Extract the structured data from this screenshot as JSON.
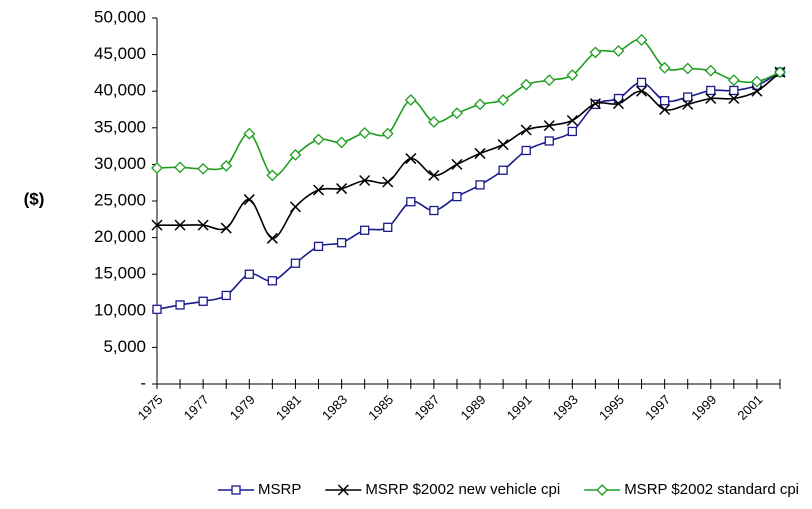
{
  "chart_data": {
    "type": "line",
    "y_label": "($)",
    "categories": [
      "1975",
      null,
      "1977",
      null,
      "1979",
      null,
      "1981",
      null,
      "1983",
      null,
      "1985",
      null,
      "1987",
      null,
      "1989",
      null,
      "1991",
      null,
      "1993",
      null,
      "1995",
      null,
      "1997",
      null,
      "1999",
      null,
      "2001",
      null
    ],
    "series": [
      {
        "name": "MSRP",
        "color": "#1a1a8c",
        "marker": "square",
        "values": [
          10200,
          10800,
          11300,
          12100,
          15000,
          14100,
          16500,
          18800,
          19300,
          21000,
          21400,
          24900,
          23700,
          25600,
          27200,
          29200,
          31900,
          33200,
          34500,
          38200,
          39000,
          41200,
          38700,
          39200,
          40100,
          40100,
          40800,
          42600
        ]
      },
      {
        "name": "MSRP $2002 new vehicle cpi",
        "color": "#000000",
        "marker": "x",
        "values": [
          21700,
          21700,
          21700,
          21300,
          25200,
          19900,
          24200,
          26500,
          26700,
          27800,
          27600,
          30800,
          28500,
          30000,
          31500,
          32700,
          34700,
          35300,
          36000,
          38300,
          38300,
          40000,
          37500,
          38200,
          39000,
          39000,
          40000,
          42600
        ]
      },
      {
        "name": "MSRP $2002 standard cpi",
        "color": "#1e9e1e",
        "marker": "diamond",
        "values": [
          29500,
          29600,
          29400,
          29800,
          34200,
          28500,
          31300,
          33400,
          33000,
          34300,
          34200,
          38800,
          35800,
          37000,
          38200,
          38800,
          40900,
          41500,
          42200,
          45300,
          45500,
          47000,
          43200,
          43100,
          42800,
          41500,
          41300,
          42600
        ]
      }
    ],
    "ylim": [
      0,
      50000
    ],
    "yticks": [
      {
        "value": 0,
        "label": "-"
      },
      {
        "value": 5000,
        "label": "5,000"
      },
      {
        "value": 10000,
        "label": "10,000"
      },
      {
        "value": 15000,
        "label": "15,000"
      },
      {
        "value": 20000,
        "label": "20,000"
      },
      {
        "value": 25000,
        "label": "25,000"
      },
      {
        "value": 30000,
        "label": "30,000"
      },
      {
        "value": 35000,
        "label": "35,000"
      },
      {
        "value": 40000,
        "label": "40,000"
      },
      {
        "value": 45000,
        "label": "45,000"
      },
      {
        "value": 50000,
        "label": "50,000"
      }
    ],
    "grid": false,
    "legend": "bottom"
  }
}
